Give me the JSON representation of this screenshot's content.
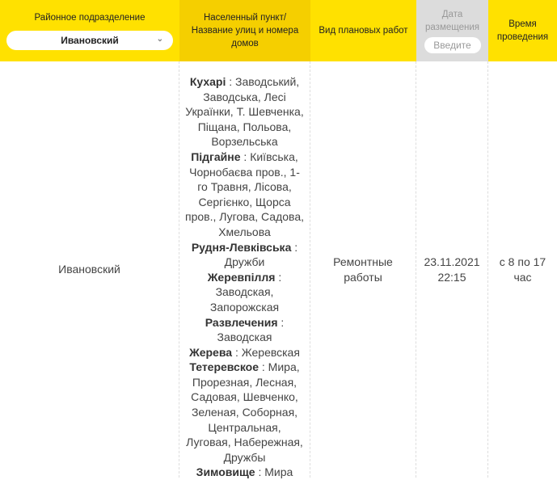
{
  "header": {
    "district_label": "Районное подразделение",
    "district_select": "Ивановский",
    "settlement_label": "Населенный пункт/ Название улиц и номера домов",
    "work_type_label": "Вид плановых работ",
    "date_label": "Дата размещения",
    "date_placeholder": "Введите",
    "time_label": "Время проведения"
  },
  "row": {
    "district": "Ивановский",
    "places": [
      {
        "name": "Кухарі",
        "streets": "Заводський, Заводська, Лесі Українки, Т. Шевченка, Піщана, Польова, Ворзельська"
      },
      {
        "name": "Підгайне",
        "streets": "Київська, Чорнобаєва пров., 1-го Травня, Лісова, Сергієнко, Щорса пров., Лугова, Садова, Хмельова"
      },
      {
        "name": "Рудня-Левківська",
        "streets": "Дружби"
      },
      {
        "name": "Жеревпілля",
        "streets": "Заводская, Запорожская"
      },
      {
        "name": "Развлечения",
        "streets": "Заводская"
      },
      {
        "name": "Жерева",
        "streets": "Жеревская"
      },
      {
        "name": "Тетеревское",
        "streets": "Мира, Прорезная, Лесная, Садовая, Шевченко, Зеленая, Соборная, Центральная, Луговая, Набережная, Дружбы"
      },
      {
        "name": "Зимовище",
        "streets": "Мира"
      }
    ],
    "work_type": "Ремонтные работы",
    "date": "23.11.2021 22:15",
    "time": "с 8 по 17 час"
  }
}
